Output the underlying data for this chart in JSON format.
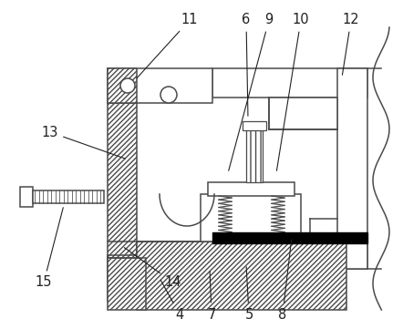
{
  "bg_color": "#ffffff",
  "line_color": "#4a4a4a",
  "label_color": "#222222",
  "figsize": [
    4.42,
    3.61
  ],
  "dpi": 100,
  "lw": 1.1
}
